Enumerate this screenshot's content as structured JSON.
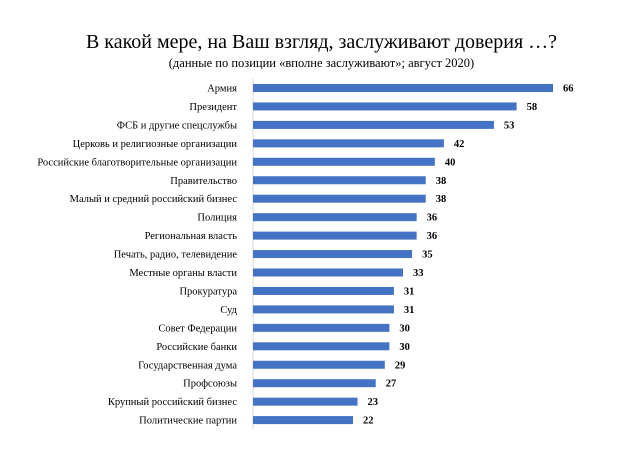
{
  "chart_data": {
    "type": "bar",
    "orientation": "horizontal",
    "title": "В какой мере, на Ваш взгляд, заслуживают доверия …?",
    "subtitle": "(данные по позиции «вполне заслуживают»;  август 2020)",
    "categories": [
      "Армия",
      "Президент",
      "ФСБ и другие спецслужбы",
      "Церковь и религиозные организации",
      "Российские благотворительные организации",
      "Правительство",
      "Малый и средний российский бизнес",
      "Полиция",
      "Региональная власть",
      "Печать, радио, телевидение",
      "Местные органы власти",
      "Прокуратура",
      "Суд",
      "Совет Федерации",
      "Российские банки",
      "Государственная дума",
      "Профсоюзы",
      "Крупный российский бизнес",
      "Политические партии"
    ],
    "values": [
      66,
      58,
      53,
      42,
      40,
      38,
      38,
      36,
      36,
      35,
      33,
      31,
      31,
      30,
      30,
      29,
      27,
      23,
      22
    ],
    "xlim": [
      0,
      66
    ],
    "bar_color": "#4472C4",
    "show_axis": false,
    "grid": false,
    "legend": "none"
  }
}
